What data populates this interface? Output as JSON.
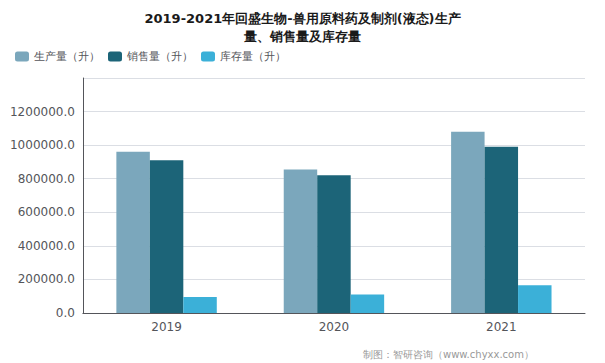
{
  "chart_data": {
    "type": "bar",
    "title": "2019-2021年回盛生物-兽用原料药及制剂(液态)生产\n量、销售量及库存量",
    "categories": [
      "2019",
      "2020",
      "2021"
    ],
    "series": [
      {
        "name": "生产量（升）",
        "color": "#7BA7BC",
        "values": [
          960000,
          855000,
          1080000
        ]
      },
      {
        "name": "销售量（升）",
        "color": "#1C6478",
        "values": [
          910000,
          820000,
          990000
        ]
      },
      {
        "name": "库存量（升）",
        "color": "#3BB0D8",
        "values": [
          95000,
          110000,
          165000
        ]
      }
    ],
    "ylim": [
      0,
      1400000
    ],
    "yticks": [
      {
        "value": 0,
        "label": "0.0"
      },
      {
        "value": 200000,
        "label": "200000.0"
      },
      {
        "value": 400000,
        "label": "400000.0"
      },
      {
        "value": 600000,
        "label": "600000.0"
      },
      {
        "value": 800000,
        "label": "800000.0"
      },
      {
        "value": 1000000,
        "label": "1000000.0"
      },
      {
        "value": 1200000,
        "label": "1200000.0"
      }
    ],
    "grid": true,
    "legend": "upper left",
    "annotations": [
      "制图：智研咨询（www.chyxx.com）"
    ]
  }
}
